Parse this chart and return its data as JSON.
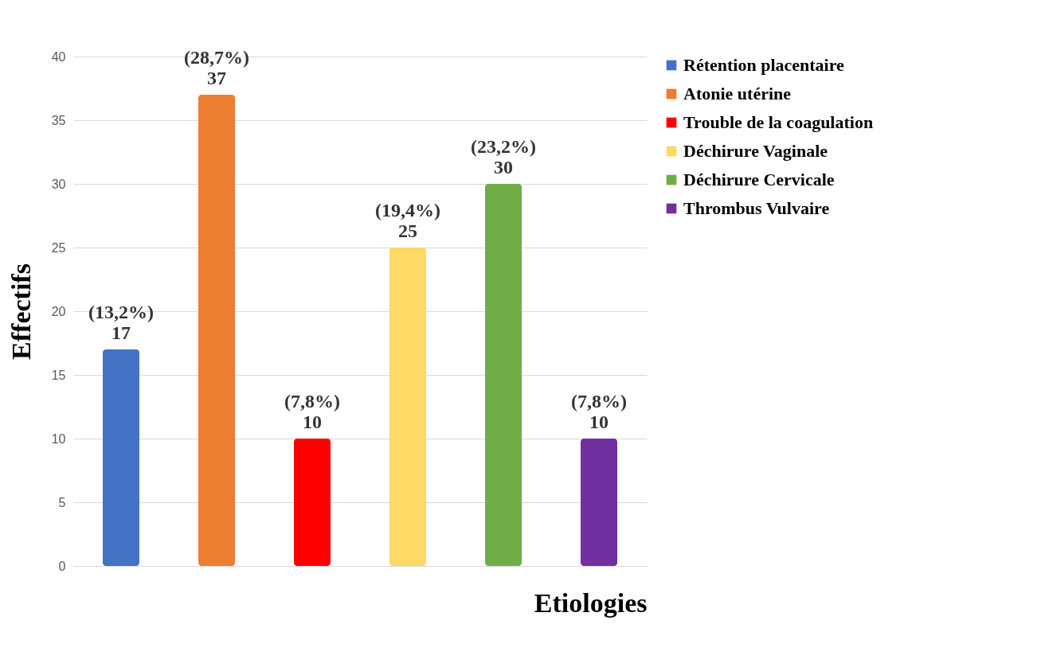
{
  "chart_data": {
    "type": "bar",
    "xlabel": "Etiologies",
    "ylabel": "Effectifs",
    "categories": [
      null,
      null,
      null,
      null,
      null,
      null
    ],
    "series": [
      {
        "name": "Rétention placentaire",
        "color": "#4472c4",
        "values": [
          17,
          null,
          null,
          null,
          null,
          null
        ],
        "value_labels": [
          "(13,2%)\n17",
          null,
          null,
          null,
          null,
          null
        ]
      },
      {
        "name": "Atonie utérine",
        "color": "#ed7d31",
        "values": [
          null,
          37,
          null,
          null,
          null,
          null
        ],
        "value_labels": [
          null,
          "(28,7%)\n37",
          null,
          null,
          null,
          null
        ]
      },
      {
        "name": "Trouble de la coagulation",
        "color": "#ff0000",
        "values": [
          null,
          null,
          10,
          null,
          null,
          null
        ],
        "value_labels": [
          null,
          null,
          "(7,8%)\n10",
          null,
          null,
          null
        ]
      },
      {
        "name": "Déchirure Vaginale",
        "color": "#ffd966",
        "values": [
          null,
          null,
          null,
          25,
          null,
          null
        ],
        "value_labels": [
          null,
          null,
          null,
          "(19,4%)\n25",
          null,
          null
        ]
      },
      {
        "name": "Déchirure  Cervicale",
        "color": "#70ad47",
        "values": [
          null,
          null,
          null,
          null,
          30,
          null
        ],
        "value_labels": [
          null,
          null,
          null,
          null,
          "(23,2%)\n30",
          null
        ]
      },
      {
        "name": "Thrombus Vulvaire",
        "color": "#7030a0",
        "values": [
          null,
          null,
          null,
          null,
          null,
          10
        ],
        "value_labels": [
          null,
          null,
          null,
          null,
          null,
          "(7,8%)\n10"
        ]
      }
    ],
    "ylim": [
      0,
      40
    ],
    "yticks": [
      0,
      5,
      10,
      15,
      20,
      25,
      30,
      35,
      40
    ],
    "grid": "y",
    "legend": "right",
    "tick_labels": "y"
  }
}
